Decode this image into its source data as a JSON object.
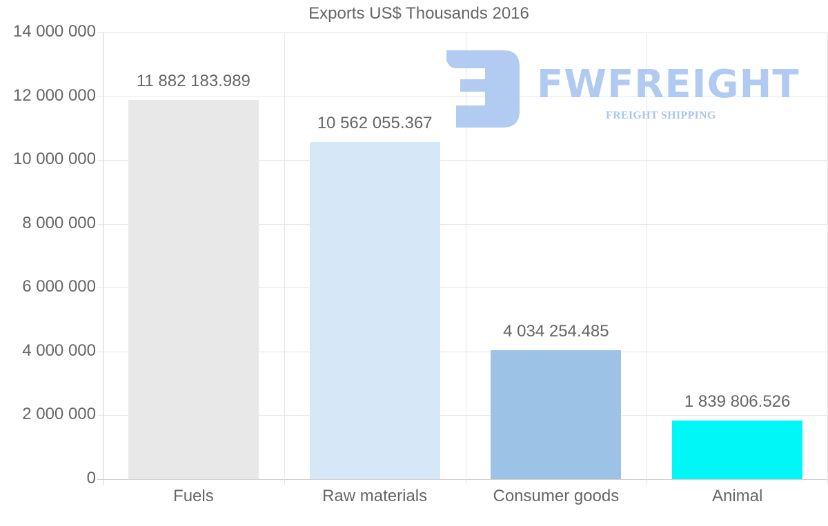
{
  "chart_data": {
    "type": "bar",
    "title": "Exports US$ Thousands 2016",
    "xlabel": "",
    "ylabel": "",
    "ylim": [
      0,
      14000000
    ],
    "yticks": [
      "0",
      "2 000 000",
      "4 000 000",
      "6 000 000",
      "8 000 000",
      "10 000 000",
      "12 000 000",
      "14 000 000"
    ],
    "ytick_values": [
      0,
      2000000,
      4000000,
      6000000,
      8000000,
      10000000,
      12000000,
      14000000
    ],
    "grid": true,
    "legend": "none",
    "categories": [
      "Fuels",
      "Raw materials",
      "Consumer goods",
      "Animal"
    ],
    "values": [
      11882183.989,
      10562055.367,
      4034254.485,
      1839806.526
    ],
    "data_labels": [
      "11 882 183.989",
      "10 562 055.367",
      "4 034 254.485",
      "1 839 806.526"
    ],
    "colors": [
      "#e8e8e8",
      "#d6e7f8",
      "#9cc3e6",
      "#00f7f7"
    ]
  },
  "watermark": {
    "brand": "FWFREIGHT",
    "tagline": "FREIGHT SHIPPING",
    "color": "#a9c5f0"
  }
}
